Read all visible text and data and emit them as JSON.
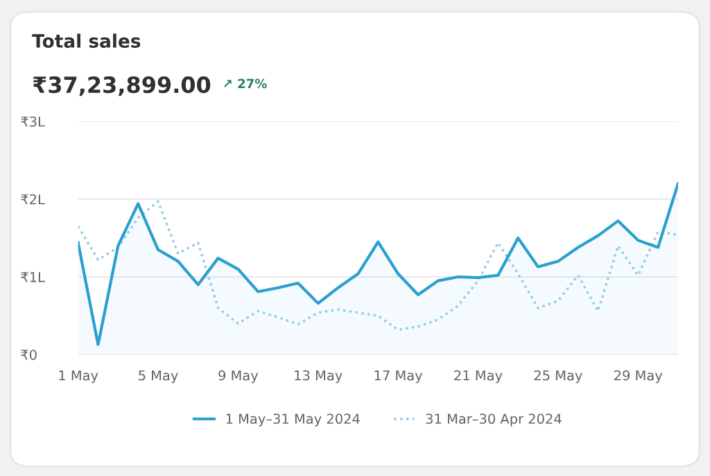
{
  "chart_data": {
    "type": "line",
    "title": "Total sales",
    "subtitle": "₹37,23,899.00",
    "annotations": [
      "↗ 27%"
    ],
    "categories": [
      "1 May",
      null,
      null,
      null,
      "5 May",
      null,
      null,
      null,
      "9 May",
      null,
      null,
      null,
      "13 May",
      null,
      null,
      null,
      "17 May",
      null,
      null,
      null,
      "21 May",
      null,
      null,
      null,
      "25 May",
      null,
      null,
      null,
      "29 May",
      null,
      null
    ],
    "series": [
      {
        "name": "1 May–31 May 2024",
        "type": "area",
        "color": "#2a9fd0",
        "line_style": "solid",
        "values": [
          1.44,
          0.13,
          1.4,
          1.94,
          1.35,
          1.2,
          0.9,
          1.24,
          1.1,
          0.81,
          0.86,
          0.92,
          0.66,
          0.86,
          1.04,
          1.45,
          1.04,
          0.77,
          0.95,
          1.0,
          0.99,
          1.02,
          1.5,
          1.13,
          1.2,
          1.38,
          1.53,
          1.72,
          1.47,
          1.38,
          2.2
        ]
      },
      {
        "name": "31 Mar–30 Apr 2024",
        "color": "#8fcbe6",
        "line_style": "dotted",
        "values": [
          1.65,
          1.22,
          1.38,
          1.76,
          1.97,
          1.3,
          1.44,
          0.6,
          0.4,
          0.56,
          0.48,
          0.39,
          0.54,
          0.58,
          0.54,
          0.5,
          0.32,
          0.36,
          0.45,
          0.63,
          0.95,
          1.44,
          1.04,
          0.6,
          0.69,
          1.02,
          0.56,
          1.4,
          1.02,
          1.58,
          1.54
        ]
      }
    ],
    "ylim": [
      0,
      3
    ],
    "yticks": [
      {
        "value": 0,
        "label": "₹0"
      },
      {
        "value": 1,
        "label": "₹1L"
      },
      {
        "value": 2,
        "label": "₹2L"
      },
      {
        "value": 3,
        "label": "₹3L"
      }
    ],
    "grid": "y",
    "legend": "bottom",
    "marker": "none"
  }
}
